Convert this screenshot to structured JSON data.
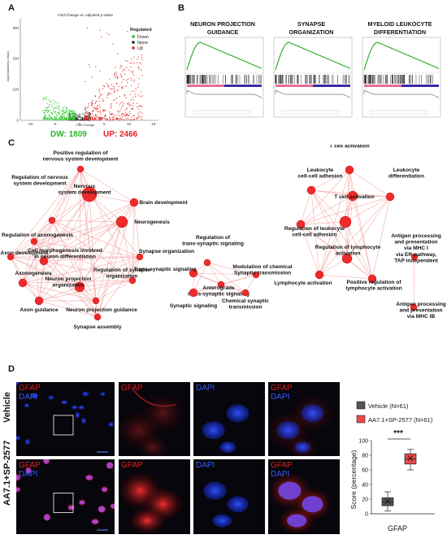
{
  "panel_labels": {
    "a": "A",
    "b": "B",
    "c": "C",
    "d": "D"
  },
  "volcano": {
    "title": "Fold Change vs. Adjusted p-Value",
    "xlabel": "Fold Change",
    "ylabel": "-log10(Adjusted p-Value)",
    "x_ticks": [
      "-10",
      "-5",
      "0",
      "5",
      "10",
      "15"
    ],
    "y_ticks": [
      "0",
      "100",
      "200",
      "300"
    ],
    "legend_title": "Regulated",
    "legend": [
      {
        "label": "Down",
        "color": "#22bb22"
      },
      {
        "label": "None",
        "color": "#222222"
      },
      {
        "label": "Up",
        "color": "#dd2222"
      }
    ],
    "dw_text": "DW: 1809",
    "up_text": "UP: 2466"
  },
  "gsea": {
    "panels": [
      {
        "title_lines": [
          "NEURON PROJECTION",
          "GUIDANCE"
        ]
      },
      {
        "title_lines": [
          "SYNAPSE",
          "ORGANIZATION"
        ]
      },
      {
        "title_lines": [
          "MYELOID LEUKOCYTE",
          "DIFFERENTIATION"
        ]
      }
    ],
    "curve_color": "#22aa22"
  },
  "network": {
    "clusters": [
      {
        "nodes": [
          {
            "id": "n_pos_reg_nervous",
            "label": "Positive regulation of\nnervous system development"
          },
          {
            "id": "n_reg_nervous",
            "label": "Regulation of nervous\nsystem development"
          },
          {
            "id": "n_nervous_dev",
            "label": "Nervous\nsystem development"
          },
          {
            "id": "n_brain",
            "label": "Brain development"
          },
          {
            "id": "n_neurogenesis",
            "label": "Neurogenesis"
          },
          {
            "id": "n_reg_axono",
            "label": "Regulation of axonogenesis"
          },
          {
            "id": "n_axon_dev",
            "label": "Axon development"
          },
          {
            "id": "n_cell_morph",
            "label": "Cell morphogenesis involved\nin neuron differentiation"
          },
          {
            "id": "n_synapse_org",
            "label": "Synapse organization"
          },
          {
            "id": "n_axonogenesis",
            "label": "Axonogenesis"
          },
          {
            "id": "n_reg_synapse_org",
            "label": "Regulation of synapse\norganization"
          },
          {
            "id": "n_neuron_proj_org",
            "label": "Neuron projection\norganization"
          },
          {
            "id": "n_axon_guidance",
            "label": "Axon guidance"
          },
          {
            "id": "n_neuron_proj_guid",
            "label": "Neuron projection guidance"
          },
          {
            "id": "n_synapse_assembly",
            "label": "Synapse assembly"
          }
        ]
      },
      {
        "nodes": [
          {
            "id": "n_reg_trans",
            "label": "Regulation of\ntrans-synaptic signaling"
          },
          {
            "id": "n_trans",
            "label": "Trans-synaptic signaling"
          },
          {
            "id": "n_mod_chem",
            "label": "Modulation of chemical\nSynaptic transmission"
          },
          {
            "id": "n_antero",
            "label": "Anterograde\ntrans-synaptic signaling"
          },
          {
            "id": "n_syn_sig",
            "label": "Synaptic signaling"
          },
          {
            "id": "n_chem_syn",
            "label": "Chemical synaptic\ntransmission"
          }
        ]
      },
      {
        "nodes": [
          {
            "id": "n_pos_reg_tcell",
            "label": "Positive regulation of\nT cell activation"
          },
          {
            "id": "n_leuk_adh",
            "label": "Leukocyte\ncell-cell adhesion"
          },
          {
            "id": "n_tcell_act",
            "label": "T cell activation"
          },
          {
            "id": "n_leuk_diff",
            "label": "Leukocyte\ndifferentiation"
          },
          {
            "id": "n_reg_leuk_adh",
            "label": "Regulation of leukocyte\ncell-cell adhesion"
          },
          {
            "id": "n_reg_lymph",
            "label": "Regulation of lymphocyte\nactivation"
          },
          {
            "id": "n_lymph_act",
            "label": "Lymphocyte activation"
          },
          {
            "id": "n_pos_reg_lymph",
            "label": "Positive regulation of\nlymphocyte activation"
          },
          {
            "id": "n_antigen_1",
            "label": "Antigen processing\nand presentation\nvia MHC I\nvia ER-pathway,\nTAP independent"
          },
          {
            "id": "n_antigen_2",
            "label": "Antigen processing\nand presentation\nvia MHC IB"
          },
          {
            "id": "n_hub_c3",
            "label": ""
          }
        ]
      }
    ]
  },
  "micro": {
    "row_labels": [
      "Vehicle",
      "AA7.1+SP-2577"
    ],
    "gfap": "GFAP",
    "dapi": "DAPI"
  },
  "boxplot": {
    "legend": [
      {
        "label": "Vehicle (N=61)",
        "color": "#555555"
      },
      {
        "label": "AA7.1+SP-2577 (N=61)",
        "color": "#e84a4a"
      }
    ],
    "significance": "***",
    "ylabel": "Score (percentage)",
    "y_ticks": [
      "0",
      "20",
      "40",
      "60",
      "80",
      "100"
    ],
    "xlabel": "GFAP"
  },
  "chart_data": [
    {
      "type": "scatter",
      "title": "Fold Change vs. Adjusted p-Value",
      "xlabel": "Fold Change",
      "ylabel": "-log10(Adjusted p-Value)",
      "xlim": [
        -12,
        16
      ],
      "ylim": [
        0,
        330
      ],
      "legend_title": "Regulated",
      "series": [
        {
          "name": "Down",
          "color": "#22bb22",
          "count": 1809
        },
        {
          "name": "None",
          "color": "#222222"
        },
        {
          "name": "Up",
          "color": "#dd2222",
          "count": 2466
        }
      ],
      "legend_position": "top-right"
    },
    {
      "type": "box",
      "ylabel": "Score (percentage)",
      "xlabel": "GFAP",
      "ylim": [
        0,
        100
      ],
      "series": [
        {
          "name": "Vehicle (N=61)",
          "color": "#555555",
          "min": 4,
          "q1": 11,
          "median": 16,
          "q3": 22,
          "max": 30,
          "mean": 17
        },
        {
          "name": "AA7.1+SP-2577 (N=61)",
          "color": "#e84a4a",
          "min": 60,
          "q1": 68,
          "median": 75,
          "q3": 82,
          "max": 88,
          "mean": 76
        }
      ],
      "annotation": "***"
    }
  ]
}
